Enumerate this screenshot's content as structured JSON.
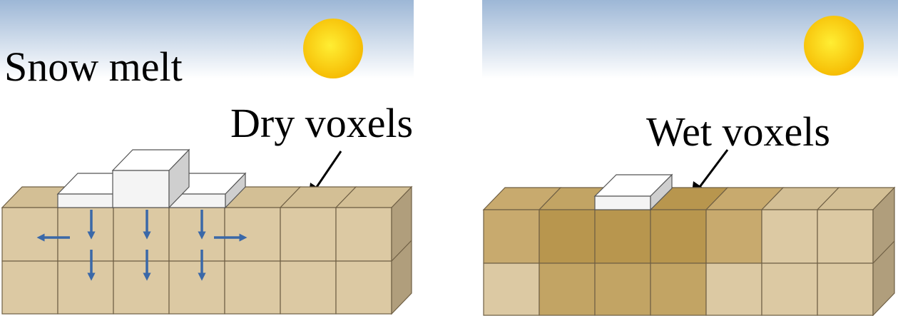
{
  "panels": {
    "left": {
      "title": "Snow melt",
      "voxel_label": "Dry voxels"
    },
    "right": {
      "voxel_label": "Wet voxels"
    }
  },
  "colors": {
    "sky_top": "#9db7d6",
    "sky_bottom": "#ffffff",
    "sun_center": "#ffee33",
    "sun_edge": "#f5b800",
    "dry_front": "#dcc9a3",
    "dry_top": "#d3bf95",
    "dry_side": "#b09e7c",
    "snow_top": "#ffffff",
    "snow_front": "#f4f4f4",
    "snow_side": "#cfcfcf",
    "arrow": "#3a68a8",
    "wet_light": "#c8aa6e",
    "wet_mid": "#c2a464",
    "wet_dark": "#b8964e"
  },
  "icons": {
    "left_sun": "sun-icon",
    "right_sun": "sun-icon",
    "infiltration_arrows": "arrow-icon"
  }
}
